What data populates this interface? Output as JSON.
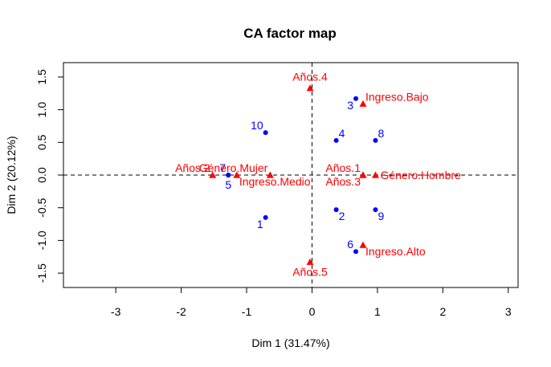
{
  "chart_data": {
    "type": "scatter",
    "title": "CA factor map",
    "xlabel": "Dim 1 (31.47%)",
    "ylabel": "Dim 2 (20.12%)",
    "xlim": [
      -3.8,
      3.15
    ],
    "ylim": [
      -1.72,
      1.72
    ],
    "xticks": [
      -3,
      -2,
      -1,
      0,
      1,
      2,
      3
    ],
    "xtick_labels": [
      "-3",
      "-2",
      "-1",
      "0",
      "1",
      "2",
      "3"
    ],
    "yticks": [
      -1.5,
      -1.0,
      -0.5,
      0.0,
      0.5,
      1.0,
      1.5
    ],
    "ytick_labels": [
      "-1.5",
      "-1.0",
      "-0.5",
      "0.0",
      "0.5",
      "1.0",
      "1.5"
    ],
    "reference_lines": {
      "x": 0,
      "y": 0,
      "style": "dashed"
    },
    "grid": false,
    "series": [
      {
        "marker": "circle",
        "color": "#0000ff",
        "points": [
          {
            "label": "1",
            "x": -0.71,
            "y": -0.65,
            "label_pos": "bottom-left"
          },
          {
            "label": "2",
            "x": 0.37,
            "y": -0.53,
            "label_pos": "bottom-right"
          },
          {
            "label": "3",
            "x": 0.67,
            "y": 1.17,
            "label_pos": "bottom-left"
          },
          {
            "label": "4",
            "x": 0.37,
            "y": 0.53,
            "label_pos": "top-right"
          },
          {
            "label": "5",
            "x": -1.28,
            "y": 0.0,
            "label_pos": "bottom"
          },
          {
            "label": "6",
            "x": 0.67,
            "y": -1.17,
            "label_pos": "top-left"
          },
          {
            "label": "7",
            "x": -1.28,
            "y": 0.0,
            "label_pos": "top-left"
          },
          {
            "label": "8",
            "x": 0.97,
            "y": 0.53,
            "label_pos": "top-right"
          },
          {
            "label": "9",
            "x": 0.97,
            "y": -0.53,
            "label_pos": "bottom-right"
          },
          {
            "label": "10",
            "x": -0.71,
            "y": 0.65,
            "label_pos": "top-left"
          }
        ]
      },
      {
        "marker": "triangle",
        "color": "#ff0000",
        "points": [
          {
            "label": "Años.1",
            "x": 0.78,
            "y": 0.0,
            "label_pos": "top-left"
          },
          {
            "label": "Años.2",
            "x": -1.52,
            "y": 0.0,
            "label_pos": "top-left"
          },
          {
            "label": "Años.3",
            "x": 0.78,
            "y": 0.0,
            "label_pos": "bottom-left"
          },
          {
            "label": "Años.4",
            "x": -0.03,
            "y": 1.33,
            "label_pos": "top"
          },
          {
            "label": "Años.5",
            "x": -0.03,
            "y": -1.33,
            "label_pos": "bottom"
          },
          {
            "label": "Género.Hombre",
            "x": 0.97,
            "y": 0.0,
            "label_pos": "right"
          },
          {
            "label": "Género.Mujer",
            "x": -0.64,
            "y": 0.0,
            "label_pos": "top-left"
          },
          {
            "label": "Ingreso.Alto",
            "x": 0.78,
            "y": -1.07,
            "label_pos": "bottom-right"
          },
          {
            "label": "Ingreso.Bajo",
            "x": 0.78,
            "y": 1.09,
            "label_pos": "top-right"
          },
          {
            "label": "Ingreso.Medio",
            "x": -1.15,
            "y": 0.0,
            "label_pos": "bottom-right"
          }
        ]
      }
    ]
  }
}
